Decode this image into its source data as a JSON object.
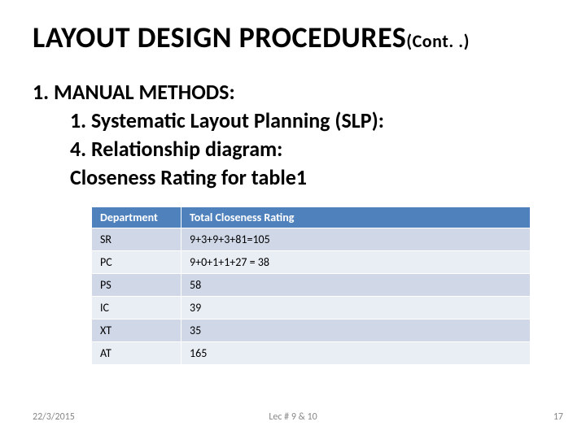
{
  "title_main": "LAYOUT DESIGN PROCEDURES",
  "title_cont": "(Cont. .)",
  "body": {
    "l1": "1.  MANUAL METHODS:",
    "l2": "1.   Systematic Layout Planning (SLP):",
    "l3": "4. Relationship diagram:",
    "l4": "Closeness Rating for table1"
  },
  "table": {
    "header_bg": "#4f81bd",
    "row_band1": "#d0d8e8",
    "row_band2": "#e9edf4",
    "columns": [
      "Department",
      "Total Closeness Rating"
    ],
    "rows": [
      [
        "SR",
        "9+3+9+3+81=105"
      ],
      [
        "PC",
        "9+0+1+1+27 = 38"
      ],
      [
        "PS",
        "58"
      ],
      [
        "IC",
        "39"
      ],
      [
        "XT",
        "35"
      ],
      [
        "AT",
        "165"
      ]
    ]
  },
  "footer": {
    "date": "22/3/2015",
    "center": "Lec # 9 & 10",
    "page": "17"
  }
}
